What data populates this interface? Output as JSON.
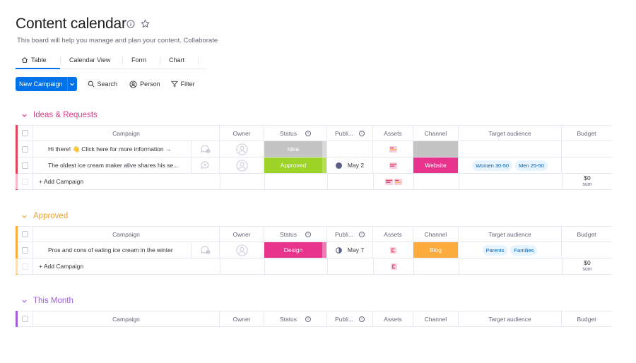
{
  "board": {
    "title": "Content calendar",
    "description": "This board will help you manage and plan your content. Collaborate"
  },
  "tabs": [
    {
      "label": "Table",
      "icon": "home-icon",
      "active": true
    },
    {
      "label": "Calendar View",
      "active": false
    },
    {
      "label": "Form",
      "active": false
    },
    {
      "label": "Chart",
      "active": false
    }
  ],
  "toolbar": {
    "new_label": "New Campaign",
    "search_label": "Search",
    "person_label": "Person",
    "filter_label": "Filter"
  },
  "columns": {
    "campaign": "Campaign",
    "owner": "Owner",
    "status": "Status",
    "publish": "Publi...",
    "assets": "Assets",
    "channel": "Channel",
    "target": "Target audience",
    "budget": "Budget"
  },
  "add_campaign_label": "+ Add Campaign",
  "colors": {
    "accent": "#0073ea",
    "ideas": "#e2445c",
    "ideas_header": "#d83a8a",
    "approved": "#fdab3d",
    "approved_header": "#e8a33a",
    "this_month": "#a25ddc",
    "idea_status": "#c4c4c4",
    "approved_status": "#9cd326",
    "design_status": "#e8338c",
    "website_channel": "#e8338c",
    "blog_channel": "#fdab3d"
  },
  "groups": [
    {
      "name": "Ideas & Requests",
      "rows": [
        {
          "campaign": "Hi there! 👋 Click here for more information →",
          "status": "Idea",
          "publish": "",
          "channel": "",
          "tags": []
        },
        {
          "campaign": "The oldest ice cream maker alive shares his se...",
          "status": "Approved",
          "publish": "May 2",
          "channel": "Website",
          "tags": [
            "Women 30-50",
            "Men 25-50"
          ]
        }
      ],
      "budget_sum": "$0",
      "sum_label": "sum"
    },
    {
      "name": "Approved",
      "rows": [
        {
          "campaign": "Pros and cons of eating ice cream in the winter",
          "status": "Design",
          "publish": "May 7",
          "channel": "Blog",
          "tags": [
            "Parents",
            "Families"
          ]
        }
      ],
      "budget_sum": "$0",
      "sum_label": "sum"
    },
    {
      "name": "This Month",
      "rows": []
    }
  ]
}
